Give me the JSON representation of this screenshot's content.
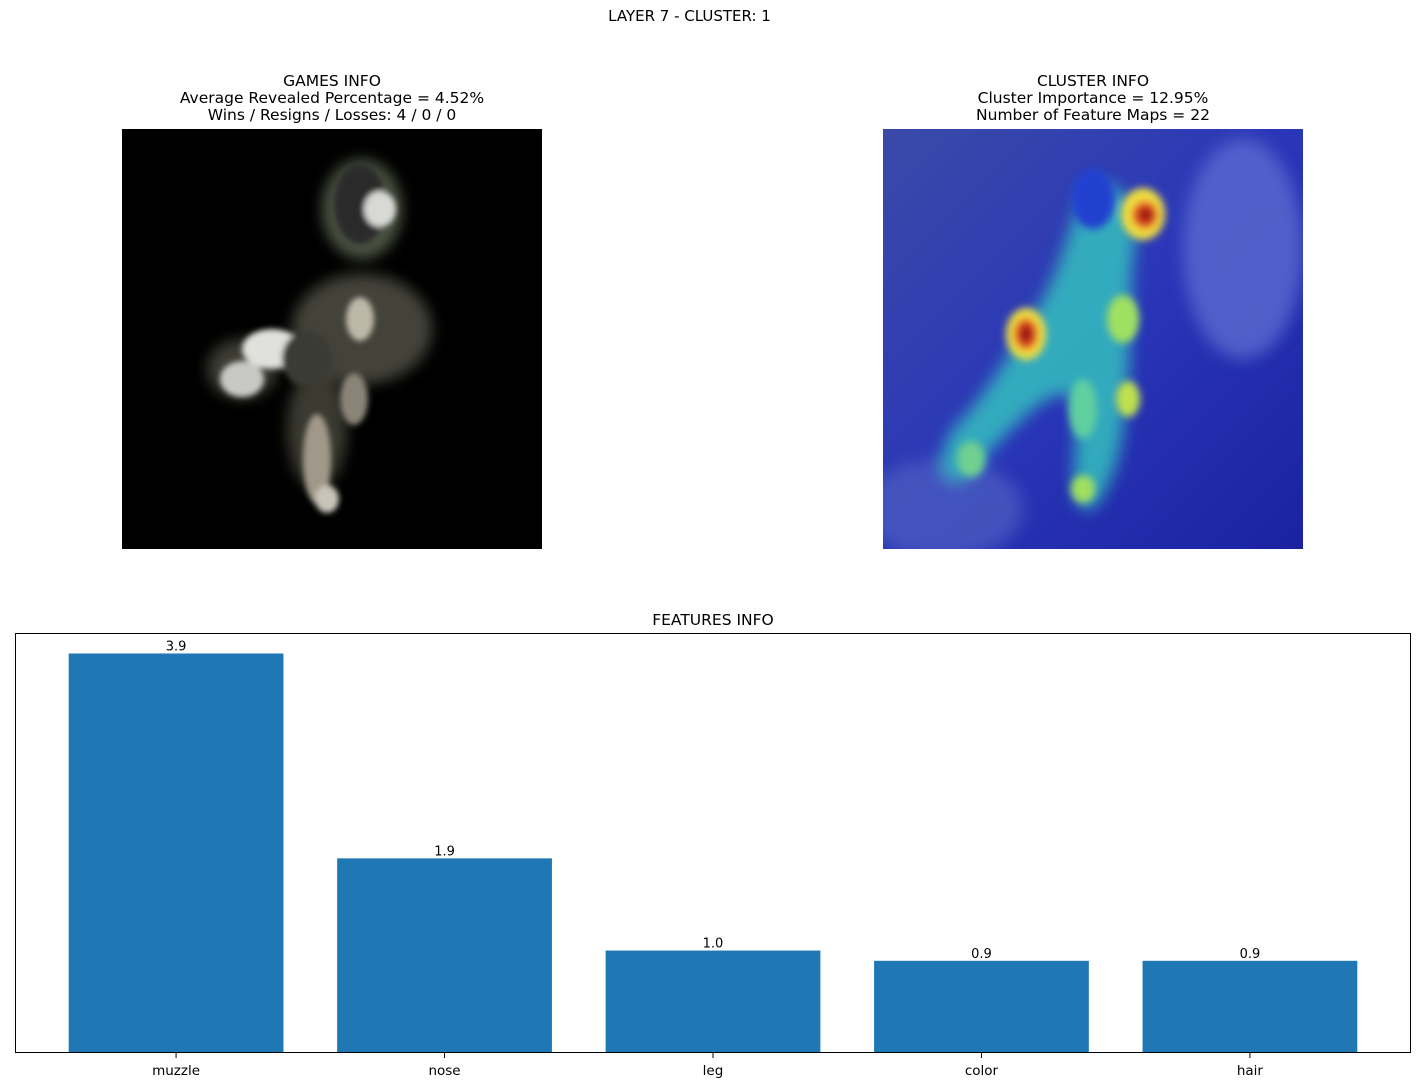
{
  "figure": {
    "title": "LAYER 7 - CLUSTER: 1"
  },
  "games_panel": {
    "title_lines": [
      "GAMES INFO",
      "Average Revealed Percentage = 4.52%",
      "Wins / Resigns / Losses: 4 / 0 / 0"
    ],
    "image": "masked-dog-photo"
  },
  "cluster_panel": {
    "title_lines": [
      "CLUSTER INFO",
      "Cluster Importance = 12.95%",
      "Number of Feature Maps = 22"
    ],
    "image": "heatmap-overlay-dog-photo"
  },
  "chart_data": {
    "type": "bar",
    "title": "FEATURES INFO",
    "categories": [
      "muzzle",
      "nose",
      "leg",
      "color",
      "hair"
    ],
    "values": [
      3.9,
      1.9,
      1.0,
      0.9,
      0.9
    ],
    "value_labels": [
      "3.9",
      "1.9",
      "1.0",
      "0.9",
      "0.9"
    ],
    "bar_color": "#1f77b4",
    "ylim": [
      0,
      4.1
    ],
    "y_ticks_visible": false,
    "grid": false
  }
}
